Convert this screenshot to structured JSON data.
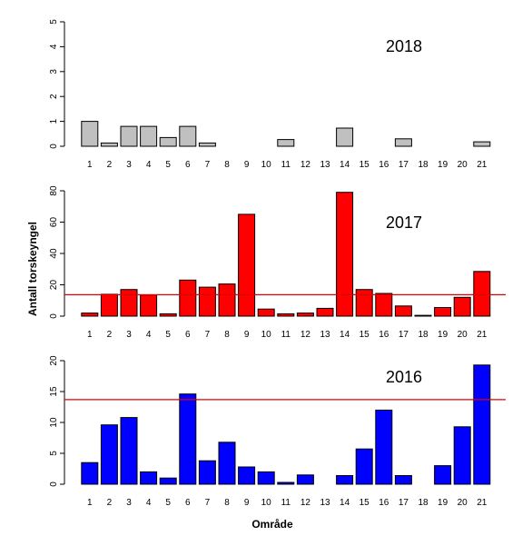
{
  "chart_data": [
    {
      "type": "bar",
      "title": "2018",
      "categories": [
        "1",
        "2",
        "3",
        "4",
        "5",
        "6",
        "7",
        "8",
        "9",
        "10",
        "11",
        "12",
        "13",
        "14",
        "15",
        "16",
        "17",
        "18",
        "19",
        "20",
        "21"
      ],
      "values": [
        1.0,
        0.13,
        0.8,
        0.8,
        0.35,
        0.8,
        0.13,
        0.0,
        0.0,
        0.0,
        0.27,
        0.0,
        0.0,
        0.73,
        0.0,
        0.0,
        0.3,
        0.0,
        0.0,
        0.0,
        0.18
      ],
      "ylim": [
        0,
        5
      ],
      "yticks": [
        "0",
        "1",
        "2",
        "3",
        "4",
        "5"
      ],
      "ytick_values": [
        0,
        1,
        2,
        3,
        4,
        5
      ],
      "reference_line": null,
      "bar_color": "#c0c0c0"
    },
    {
      "type": "bar",
      "title": "2017",
      "categories": [
        "1",
        "2",
        "3",
        "4",
        "5",
        "6",
        "7",
        "8",
        "9",
        "10",
        "11",
        "12",
        "13",
        "14",
        "15",
        "16",
        "17",
        "18",
        "19",
        "20",
        "21"
      ],
      "values": [
        2,
        14,
        17,
        13.5,
        1.5,
        23,
        18.5,
        20.5,
        65,
        4.5,
        1.5,
        2,
        5,
        79,
        17,
        14.5,
        6.5,
        0.5,
        5.5,
        12,
        28.5
      ],
      "ylim": [
        0,
        80
      ],
      "yticks": [
        "0",
        "20",
        "40",
        "60",
        "80"
      ],
      "ytick_values": [
        0,
        20,
        40,
        60,
        80
      ],
      "reference_line": 13.7,
      "bar_color": "#ff0000",
      "line_color": "#e00000"
    },
    {
      "type": "bar",
      "title": "2016",
      "categories": [
        "1",
        "2",
        "3",
        "4",
        "5",
        "6",
        "7",
        "8",
        "9",
        "10",
        "11",
        "12",
        "13",
        "14",
        "15",
        "16",
        "17",
        "18",
        "19",
        "20",
        "21"
      ],
      "values": [
        3.5,
        9.6,
        10.8,
        2.0,
        1.0,
        14.6,
        3.8,
        6.8,
        2.8,
        2.0,
        0.3,
        1.5,
        0.0,
        1.4,
        5.7,
        12.0,
        1.4,
        0.0,
        3.0,
        9.3,
        19.3
      ],
      "ylim": [
        0,
        20
      ],
      "yticks": [
        "0",
        "5",
        "10",
        "15",
        "20"
      ],
      "ytick_values": [
        0,
        5,
        10,
        15,
        20
      ],
      "reference_line": 13.7,
      "bar_color": "#0000ff",
      "line_color": "#e00000"
    }
  ],
  "ylabel": "Antall torskeyngel",
  "xlabel": "Område"
}
